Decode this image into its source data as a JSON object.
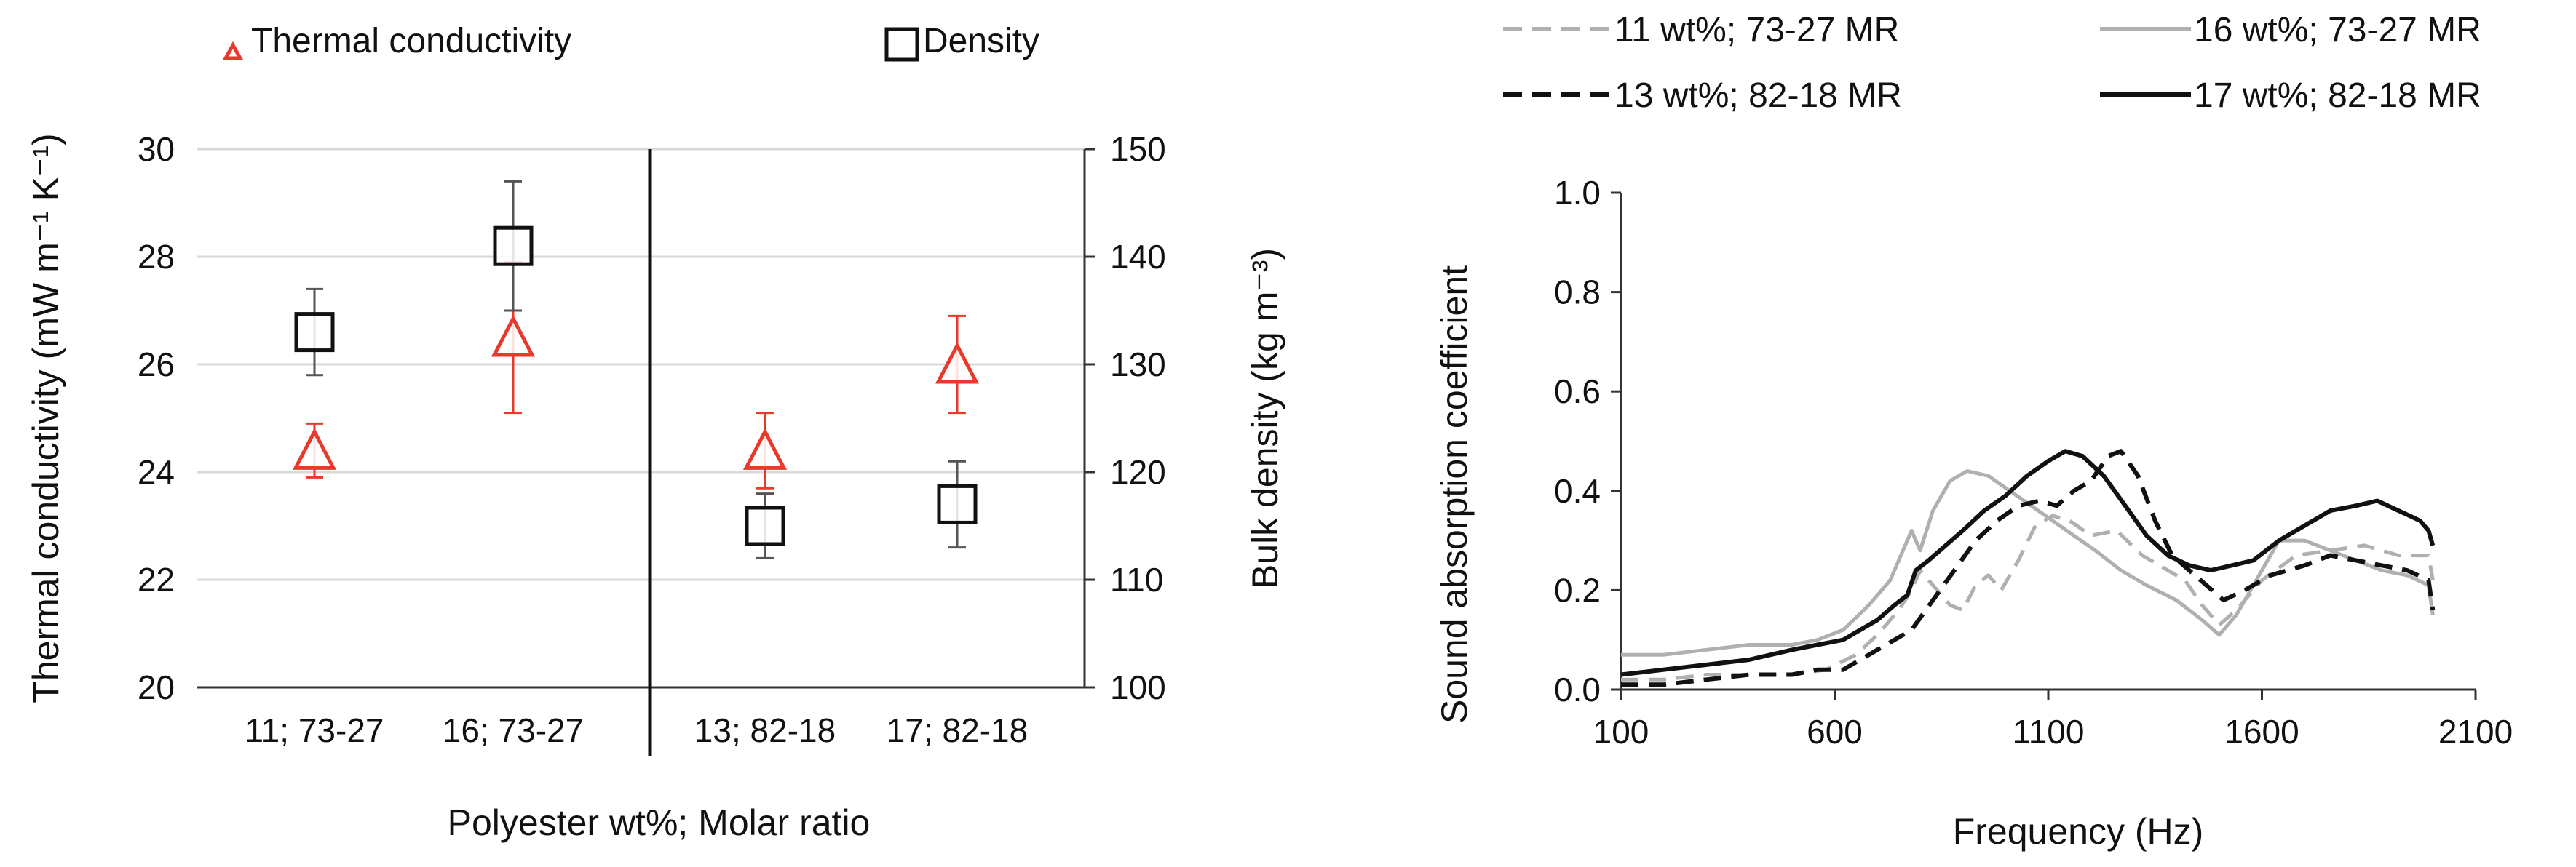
{
  "chart_data": [
    {
      "type": "scatter",
      "title": "",
      "xlabel": "Polyester wt%; Molar ratio",
      "ylabel": "Thermal conductivity (mW m⁻¹ K⁻¹)",
      "y2label": "Bulk density (kg m⁻³)",
      "categories": [
        "11; 73-27",
        "16; 73-27",
        "13; 82-18",
        "17; 82-18"
      ],
      "ylim": [
        20,
        30
      ],
      "yticks": [
        20,
        22,
        24,
        26,
        28,
        30
      ],
      "y2lim": [
        100,
        150
      ],
      "y2ticks": [
        100,
        110,
        120,
        130,
        140,
        150
      ],
      "grid": true,
      "legend": [
        "Thermal conductivity",
        "Density"
      ],
      "series": [
        {
          "name": "Thermal conductivity",
          "axis": "left",
          "marker": "triangle",
          "color": "#e8392b",
          "values": [
            24.4,
            26.5,
            24.4,
            26.0
          ],
          "errors": [
            0.5,
            1.4,
            0.7,
            0.9
          ]
        },
        {
          "name": "Density",
          "axis": "right",
          "marker": "square",
          "color": "#111111",
          "values": [
            133,
            141,
            115,
            117
          ],
          "errors": [
            4,
            6,
            3,
            4
          ]
        }
      ]
    },
    {
      "type": "line",
      "title": "",
      "xlabel": "Frequency (Hz)",
      "ylabel": "Sound absorption coefficient",
      "xlim": [
        100,
        2100
      ],
      "xticks": [
        100,
        600,
        1100,
        1600,
        2100
      ],
      "ylim": [
        0,
        1.0
      ],
      "yticks": [
        "0.0",
        "0.2",
        "0.4",
        "0.6",
        "0.8",
        "1.0"
      ],
      "grid": false,
      "series": [
        {
          "name": "11 wt%; 73-27 MR",
          "color": "#b0b0b0",
          "dash": true,
          "points": [
            [
              100,
              0.02
            ],
            [
              200,
              0.02
            ],
            [
              300,
              0.03
            ],
            [
              400,
              0.03
            ],
            [
              500,
              0.03
            ],
            [
              580,
              0.04
            ],
            [
              650,
              0.07
            ],
            [
              700,
              0.11
            ],
            [
              750,
              0.16
            ],
            [
              780,
              0.2
            ],
            [
              800,
              0.24
            ],
            [
              830,
              0.21
            ],
            [
              870,
              0.17
            ],
            [
              900,
              0.16
            ],
            [
              930,
              0.21
            ],
            [
              960,
              0.23
            ],
            [
              990,
              0.2
            ],
            [
              1030,
              0.26
            ],
            [
              1070,
              0.33
            ],
            [
              1110,
              0.35
            ],
            [
              1150,
              0.34
            ],
            [
              1200,
              0.31
            ],
            [
              1260,
              0.32
            ],
            [
              1320,
              0.27
            ],
            [
              1380,
              0.24
            ],
            [
              1420,
              0.22
            ],
            [
              1460,
              0.17
            ],
            [
              1500,
              0.13
            ],
            [
              1540,
              0.16
            ],
            [
              1600,
              0.22
            ],
            [
              1680,
              0.27
            ],
            [
              1760,
              0.28
            ],
            [
              1840,
              0.29
            ],
            [
              1920,
              0.27
            ],
            [
              1990,
              0.27
            ],
            [
              2000,
              0.22
            ]
          ]
        },
        {
          "name": "16 wt%; 73-27 MR",
          "color": "#b0b0b0",
          "dash": false,
          "points": [
            [
              100,
              0.07
            ],
            [
              200,
              0.07
            ],
            [
              300,
              0.08
            ],
            [
              400,
              0.09
            ],
            [
              500,
              0.09
            ],
            [
              560,
              0.1
            ],
            [
              620,
              0.12
            ],
            [
              680,
              0.17
            ],
            [
              730,
              0.22
            ],
            [
              760,
              0.28
            ],
            [
              780,
              0.32
            ],
            [
              800,
              0.28
            ],
            [
              830,
              0.36
            ],
            [
              870,
              0.42
            ],
            [
              910,
              0.44
            ],
            [
              960,
              0.43
            ],
            [
              1010,
              0.4
            ],
            [
              1060,
              0.37
            ],
            [
              1110,
              0.34
            ],
            [
              1160,
              0.31
            ],
            [
              1210,
              0.28
            ],
            [
              1270,
              0.24
            ],
            [
              1330,
              0.21
            ],
            [
              1400,
              0.18
            ],
            [
              1460,
              0.14
            ],
            [
              1500,
              0.11
            ],
            [
              1540,
              0.15
            ],
            [
              1600,
              0.24
            ],
            [
              1640,
              0.3
            ],
            [
              1700,
              0.3
            ],
            [
              1760,
              0.28
            ],
            [
              1820,
              0.26
            ],
            [
              1880,
              0.24
            ],
            [
              1940,
              0.23
            ],
            [
              1990,
              0.21
            ],
            [
              2000,
              0.15
            ]
          ]
        },
        {
          "name": "13 wt%; 82-18 MR",
          "color": "#111111",
          "dash": true,
          "points": [
            [
              100,
              0.01
            ],
            [
              200,
              0.01
            ],
            [
              300,
              0.02
            ],
            [
              400,
              0.03
            ],
            [
              500,
              0.03
            ],
            [
              560,
              0.04
            ],
            [
              620,
              0.04
            ],
            [
              660,
              0.06
            ],
            [
              700,
              0.08
            ],
            [
              740,
              0.1
            ],
            [
              780,
              0.12
            ],
            [
              830,
              0.18
            ],
            [
              880,
              0.24
            ],
            [
              930,
              0.3
            ],
            [
              980,
              0.34
            ],
            [
              1030,
              0.37
            ],
            [
              1080,
              0.38
            ],
            [
              1120,
              0.37
            ],
            [
              1160,
              0.4
            ],
            [
              1200,
              0.42
            ],
            [
              1240,
              0.47
            ],
            [
              1270,
              0.48
            ],
            [
              1310,
              0.43
            ],
            [
              1350,
              0.34
            ],
            [
              1390,
              0.27
            ],
            [
              1430,
              0.24
            ],
            [
              1470,
              0.21
            ],
            [
              1510,
              0.18
            ],
            [
              1560,
              0.2
            ],
            [
              1620,
              0.23
            ],
            [
              1700,
              0.25
            ],
            [
              1760,
              0.27
            ],
            [
              1820,
              0.26
            ],
            [
              1880,
              0.25
            ],
            [
              1940,
              0.24
            ],
            [
              1990,
              0.22
            ],
            [
              2000,
              0.16
            ]
          ]
        },
        {
          "name": "17 wt%; 82-18 MR",
          "color": "#111111",
          "dash": false,
          "points": [
            [
              100,
              0.03
            ],
            [
              200,
              0.04
            ],
            [
              300,
              0.05
            ],
            [
              400,
              0.06
            ],
            [
              500,
              0.08
            ],
            [
              560,
              0.09
            ],
            [
              620,
              0.1
            ],
            [
              660,
              0.12
            ],
            [
              700,
              0.14
            ],
            [
              740,
              0.17
            ],
            [
              770,
              0.19
            ],
            [
              790,
              0.24
            ],
            [
              820,
              0.26
            ],
            [
              860,
              0.29
            ],
            [
              900,
              0.32
            ],
            [
              950,
              0.36
            ],
            [
              1000,
              0.39
            ],
            [
              1050,
              0.43
            ],
            [
              1100,
              0.46
            ],
            [
              1140,
              0.48
            ],
            [
              1180,
              0.47
            ],
            [
              1230,
              0.43
            ],
            [
              1280,
              0.37
            ],
            [
              1330,
              0.31
            ],
            [
              1380,
              0.27
            ],
            [
              1430,
              0.25
            ],
            [
              1480,
              0.24
            ],
            [
              1530,
              0.25
            ],
            [
              1580,
              0.26
            ],
            [
              1640,
              0.3
            ],
            [
              1700,
              0.33
            ],
            [
              1760,
              0.36
            ],
            [
              1820,
              0.37
            ],
            [
              1870,
              0.38
            ],
            [
              1920,
              0.36
            ],
            [
              1970,
              0.34
            ],
            [
              1990,
              0.32
            ],
            [
              2000,
              0.29
            ]
          ]
        }
      ],
      "legend": [
        "11 wt%; 73-27 MR",
        "16 wt%; 73-27 MR",
        "13 wt%; 82-18 MR",
        "17 wt%; 82-18 MR"
      ]
    }
  ]
}
